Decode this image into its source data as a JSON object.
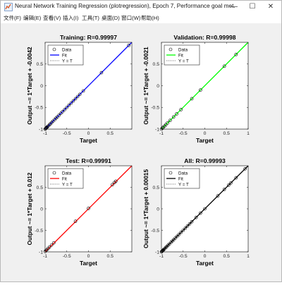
{
  "window": {
    "title": "Neural Network Training Regression (plotregression), Epoch 7, Performance goal met.",
    "minimize_glyph": "—",
    "maximize_glyph": "☐",
    "close_glyph": "✕",
    "app_icon": "matlab-figure-icon"
  },
  "menu": {
    "items": [
      "文件(F)",
      "编辑(E)",
      "查看(V)",
      "插入(I)",
      "工具(T)",
      "桌面(D)",
      "窗口(W)",
      "帮助(H)"
    ]
  },
  "legend": {
    "data_label": "Data",
    "fit_label": "Fit",
    "yt_label": "Y = T"
  },
  "colors": {
    "training": "#0000ff",
    "validation": "#00ff00",
    "test": "#ff0000",
    "all": "#000000",
    "axes_bg": "#ffffff",
    "figure_bg": "#f0f0f0"
  },
  "chart_data": [
    {
      "type": "scatter",
      "title": "Training: R=0.99997",
      "xlabel": "Target",
      "ylabel": "Output ~= 1*Target + -0.0042",
      "xlim": [
        -1,
        1
      ],
      "ylim": [
        -1,
        1
      ],
      "xticks": [
        "-1",
        "-0.5",
        "0",
        "0.5"
      ],
      "yticks": [
        "-1",
        "-0.5",
        "0",
        "0.5"
      ],
      "fit_color": "#0000ff",
      "x": [
        -1,
        -0.99,
        -0.98,
        -0.97,
        -0.96,
        -0.95,
        -0.93,
        -0.9,
        -0.88,
        -0.85,
        -0.82,
        -0.78,
        -0.75,
        -0.72,
        -0.68,
        -0.64,
        -0.6,
        -0.55,
        -0.5,
        -0.45,
        -0.4,
        -0.35,
        -0.3,
        -0.25,
        -0.2,
        -0.12,
        0.3,
        0.93
      ],
      "y": [
        -1,
        -0.99,
        -0.98,
        -0.97,
        -0.96,
        -0.95,
        -0.93,
        -0.9,
        -0.88,
        -0.85,
        -0.82,
        -0.78,
        -0.75,
        -0.72,
        -0.68,
        -0.64,
        -0.6,
        -0.55,
        -0.5,
        -0.45,
        -0.4,
        -0.35,
        -0.3,
        -0.25,
        -0.2,
        -0.12,
        0.3,
        0.93
      ]
    },
    {
      "type": "scatter",
      "title": "Validation: R=0.99998",
      "xlabel": "Target",
      "ylabel": "Output ~= 1*Target + -0.0021",
      "xlim": [
        -1,
        1
      ],
      "ylim": [
        -1,
        1
      ],
      "xticks": [
        "-1",
        "-0.5",
        "0",
        "0.5",
        "1"
      ],
      "yticks": [
        "-1",
        "-0.5",
        "0",
        "0.5"
      ],
      "fit_color": "#00ff00",
      "x": [
        -1,
        -0.98,
        -0.96,
        -0.93,
        -0.9,
        -0.86,
        -0.8,
        -0.72,
        -0.65,
        -0.55,
        -0.3,
        -0.1,
        0.45,
        0.72
      ],
      "y": [
        -1,
        -0.98,
        -0.96,
        -0.93,
        -0.9,
        -0.86,
        -0.8,
        -0.72,
        -0.65,
        -0.55,
        -0.3,
        -0.1,
        0.45,
        0.72
      ]
    },
    {
      "type": "scatter",
      "title": "Test: R=0.99991",
      "xlabel": "Target",
      "ylabel": "Output ~= 1*Target + 0.012",
      "xlim": [
        -1,
        1
      ],
      "ylim": [
        -1,
        1
      ],
      "xticks": [
        "-1",
        "-0.5",
        "0",
        "0.5"
      ],
      "yticks": [
        "-1",
        "-0.5",
        "0",
        "0.5"
      ],
      "fit_color": "#ff0000",
      "x": [
        -1,
        -0.98,
        -0.96,
        -0.93,
        -0.9,
        -0.85,
        -0.8,
        -0.3,
        0.0,
        0.55,
        0.6,
        0.63
      ],
      "y": [
        -0.99,
        -0.97,
        -0.95,
        -0.92,
        -0.89,
        -0.84,
        -0.79,
        -0.29,
        0.01,
        0.56,
        0.61,
        0.64
      ]
    },
    {
      "type": "scatter",
      "title": "All: R=0.99993",
      "xlabel": "Target",
      "ylabel": "Output ~= 1*Target + 0.00015",
      "xlim": [
        -1,
        1
      ],
      "ylim": [
        -1,
        1
      ],
      "xticks": [
        "-1",
        "-0.5",
        "0",
        "0.5",
        "1"
      ],
      "yticks": [
        "-1",
        "-0.5",
        "0",
        "0.5"
      ],
      "fit_color": "#000000",
      "x": [
        -1,
        -0.99,
        -0.98,
        -0.97,
        -0.96,
        -0.95,
        -0.93,
        -0.9,
        -0.88,
        -0.85,
        -0.82,
        -0.78,
        -0.75,
        -0.72,
        -0.68,
        -0.64,
        -0.6,
        -0.55,
        -0.5,
        -0.45,
        -0.4,
        -0.35,
        -0.3,
        -0.2,
        -0.1,
        0.0,
        0.3,
        0.45,
        0.55,
        0.6,
        0.72,
        0.93
      ],
      "y": [
        -1,
        -0.99,
        -0.98,
        -0.97,
        -0.96,
        -0.95,
        -0.93,
        -0.9,
        -0.88,
        -0.85,
        -0.82,
        -0.78,
        -0.75,
        -0.72,
        -0.68,
        -0.64,
        -0.6,
        -0.55,
        -0.5,
        -0.45,
        -0.4,
        -0.35,
        -0.3,
        -0.2,
        -0.1,
        0.0,
        0.3,
        0.45,
        0.55,
        0.6,
        0.72,
        0.93
      ]
    }
  ]
}
